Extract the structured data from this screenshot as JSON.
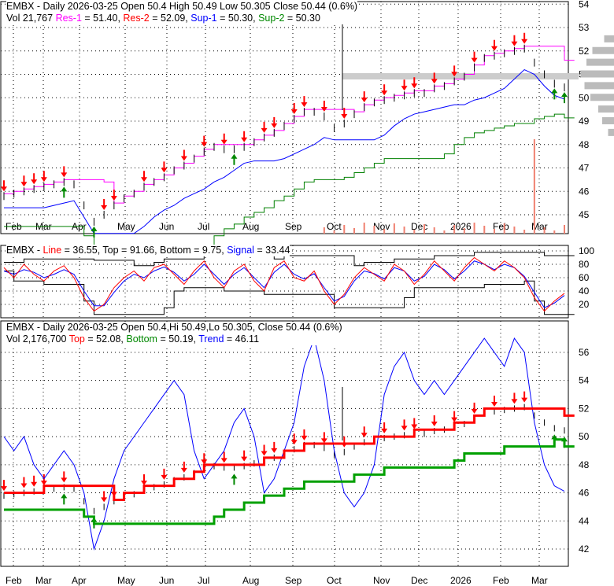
{
  "panel1": {
    "line1": "EMBX - Daily 2026-03-25 Open 50.4  High 50.49  Low 50.305  Close 50.44 (0.6%)",
    "vol": "Vol 21,767",
    "res1": "Res-1",
    "res1_val": " = 51.40, ",
    "res2": "Res-2",
    "res2_val": " = 52.09, ",
    "sup1": "Sup-1",
    "sup1_val": " = 50.30, ",
    "sup2": "Sup-2",
    "sup2_val": " = 50.30",
    "yticks": [
      "45",
      "46",
      "47",
      "48",
      "49",
      "50",
      "51",
      "52",
      "53",
      "54"
    ]
  },
  "panel2": {
    "prefix": "EMBX - ",
    "line": "Line",
    "line_val": " = 36.55, Top = 91.66, Bottom = 9.75, ",
    "signal": "Signal",
    "signal_val": " = 33.44",
    "yticks": [
      "20",
      "40",
      "60",
      "80",
      "100"
    ]
  },
  "panel3": {
    "line1": "EMBX - Daily 2026-03-25 Open 50.4,Hi 50.49,Lo 50.305, Close 50.44 (0.6%)",
    "vol": "Vol 2,176,700 ",
    "top": "Top",
    "top_val": " = 52.08, ",
    "bottom": "Bottom",
    "bottom_val": " = 50.19, ",
    "trend": "Trend",
    "trend_val": " = 46.11",
    "yticks": [
      "42",
      "44",
      "46",
      "48",
      "50",
      "52",
      "54",
      "56"
    ]
  },
  "xticks": [
    "Feb",
    "Mar",
    "Apr",
    "May",
    "Jun",
    "Jul",
    "Aug",
    "Sep",
    "Oct",
    "Nov",
    "Dec",
    "2026",
    "Feb",
    "Mar"
  ],
  "colors": {
    "res1": "#ff00ff",
    "res2": "#ff0000",
    "sup1": "#0000ff",
    "sup2": "#008000",
    "volume": "#f08070"
  },
  "chart_data": {
    "type": "line",
    "title": "EMBX - Daily",
    "closes": [
      45.8,
      45.9,
      46.0,
      46.1,
      46.2,
      46.3,
      46.4,
      46.3,
      45.4,
      44.7,
      45.0,
      45.4,
      45.7,
      45.9,
      46.2,
      46.4,
      46.6,
      46.9,
      47.1,
      47.4,
      47.7,
      47.9,
      47.8,
      47.8,
      47.9,
      48.1,
      48.3,
      48.5,
      48.8,
      49.1,
      49.4,
      49.4,
      49.2,
      48.7,
      48.9,
      49.3,
      49.6,
      49.8,
      49.9,
      50.0,
      50.1,
      50.2,
      50.2,
      50.4,
      50.5,
      50.7,
      50.9,
      51.3,
      51.7,
      51.8,
      51.9,
      52.0,
      52.1,
      51.5,
      51.0,
      50.6,
      50.44
    ],
    "oscillator": [
      75,
      60,
      80,
      65,
      55,
      70,
      78,
      60,
      30,
      10,
      20,
      45,
      60,
      70,
      55,
      75,
      80,
      65,
      50,
      70,
      85,
      60,
      45,
      70,
      80,
      55,
      40,
      75,
      85,
      60,
      55,
      70,
      40,
      20,
      35,
      60,
      75,
      65,
      55,
      80,
      70,
      50,
      65,
      85,
      70,
      55,
      75,
      90,
      80,
      70,
      85,
      75,
      60,
      30,
      10,
      25,
      36.55
    ],
    "signal": [
      70,
      65,
      72,
      68,
      60,
      65,
      72,
      65,
      40,
      18,
      18,
      38,
      55,
      65,
      60,
      70,
      76,
      68,
      55,
      65,
      80,
      65,
      50,
      65,
      75,
      60,
      45,
      68,
      80,
      65,
      58,
      66,
      45,
      25,
      32,
      55,
      70,
      66,
      58,
      75,
      70,
      55,
      62,
      80,
      72,
      58,
      70,
      85,
      80,
      72,
      80,
      75,
      62,
      38,
      15,
      22,
      33.44
    ],
    "trend": [
      50,
      49,
      50,
      48,
      47,
      48,
      49,
      48,
      46,
      42,
      44,
      47,
      49,
      50,
      51,
      52,
      53,
      54,
      53,
      49,
      47,
      48,
      49,
      51,
      52,
      50,
      46,
      47,
      49,
      51,
      55,
      57,
      54,
      49,
      46,
      45,
      46,
      48,
      53,
      55,
      56,
      54,
      53,
      54,
      53,
      54,
      55,
      56,
      57,
      56,
      55,
      57,
      56,
      51,
      48,
      46.5,
      46.11
    ],
    "down_arrows": [
      0,
      2,
      3,
      4,
      6,
      10,
      11,
      14,
      16,
      18,
      20,
      22,
      24,
      26,
      27,
      29,
      30,
      32,
      34,
      36,
      38,
      40,
      41,
      43,
      45,
      47,
      49,
      51,
      52
    ],
    "up_arrows": [
      6,
      9,
      23,
      55,
      56
    ],
    "xlabel": "",
    "ylabel": ""
  }
}
